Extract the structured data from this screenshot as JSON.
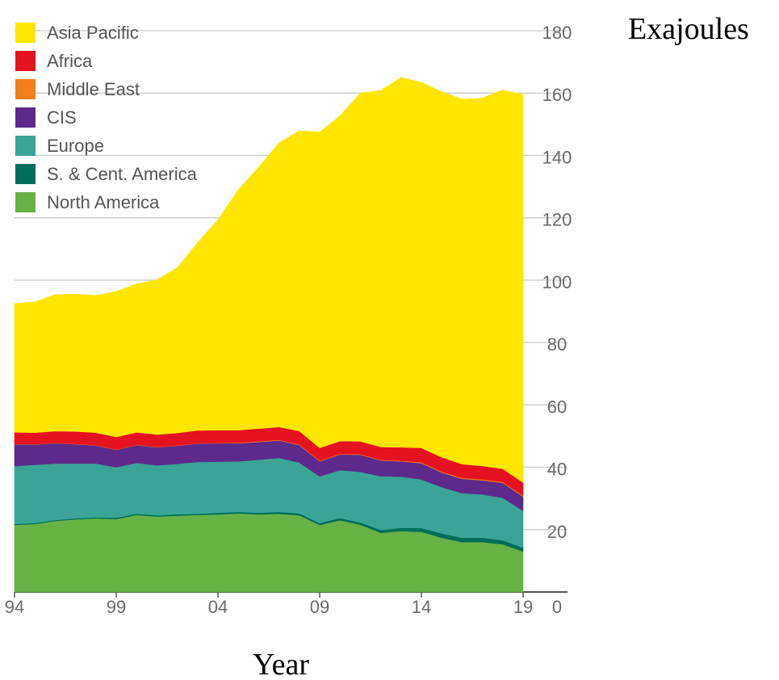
{
  "chart_data": {
    "type": "area",
    "stacked": true,
    "title": "",
    "xlabel": "Year",
    "ylabel": "Exajoules",
    "ylim": [
      0,
      180
    ],
    "yticks": [
      0,
      20,
      40,
      60,
      80,
      100,
      120,
      140,
      160,
      180
    ],
    "xlim": [
      1994,
      2019
    ],
    "xticks": [
      1994,
      1999,
      2004,
      2009,
      2014,
      2019
    ],
    "xtick_labels": [
      "94",
      "99",
      "04",
      "09",
      "14",
      "19"
    ],
    "y_axis_position": "right",
    "grid": true,
    "legend_position": "top-left",
    "x": [
      1994,
      1995,
      1996,
      1997,
      1998,
      1999,
      2000,
      2001,
      2002,
      2003,
      2004,
      2005,
      2006,
      2007,
      2008,
      2009,
      2010,
      2011,
      2012,
      2013,
      2014,
      2015,
      2016,
      2017,
      2018,
      2019
    ],
    "series": [
      {
        "name": "North America",
        "color": "#66b245",
        "values": [
          21.5,
          21.8,
          22.8,
          23.3,
          23.6,
          23.4,
          24.7,
          24.2,
          24.5,
          24.7,
          24.9,
          25.2,
          24.9,
          25.1,
          24.6,
          21.5,
          23.0,
          21.6,
          19.0,
          19.5,
          19.3,
          17.4,
          16.0,
          16.0,
          15.3,
          13.0
        ]
      },
      {
        "name": "S. & Cent. America",
        "color": "#006e5a",
        "values": [
          0.3,
          0.3,
          0.3,
          0.3,
          0.3,
          0.4,
          0.4,
          0.4,
          0.4,
          0.4,
          0.5,
          0.5,
          0.5,
          0.6,
          0.6,
          0.6,
          0.7,
          0.7,
          0.9,
          1.1,
          1.2,
          1.4,
          1.4,
          1.4,
          1.3,
          1.2
        ]
      },
      {
        "name": "Europe",
        "color": "#3aa597",
        "values": [
          18.6,
          18.7,
          18.1,
          17.6,
          17.3,
          16.2,
          16.3,
          16.0,
          16.2,
          16.6,
          16.4,
          16.2,
          17.0,
          17.3,
          16.3,
          15.0,
          15.4,
          16.2,
          17.2,
          16.4,
          15.6,
          14.8,
          14.3,
          13.9,
          13.6,
          11.8
        ]
      },
      {
        "name": "CIS",
        "color": "#5d2a8c",
        "values": [
          7.0,
          6.5,
          6.5,
          6.2,
          5.8,
          5.6,
          5.7,
          5.8,
          5.8,
          5.9,
          5.9,
          5.8,
          5.7,
          5.6,
          5.6,
          4.8,
          5.0,
          5.5,
          5.1,
          4.9,
          5.2,
          4.7,
          4.6,
          4.5,
          4.8,
          4.6
        ]
      },
      {
        "name": "Middle East",
        "color": "#f07f1c",
        "values": [
          0.1,
          0.1,
          0.1,
          0.1,
          0.1,
          0.1,
          0.1,
          0.1,
          0.1,
          0.1,
          0.1,
          0.2,
          0.2,
          0.2,
          0.2,
          0.2,
          0.2,
          0.2,
          0.2,
          0.2,
          0.3,
          0.3,
          0.3,
          0.3,
          0.3,
          0.3
        ]
      },
      {
        "name": "Africa",
        "color": "#e5121f",
        "values": [
          3.7,
          3.7,
          3.8,
          4.0,
          4.0,
          4.0,
          4.0,
          4.0,
          4.0,
          4.1,
          4.1,
          4.0,
          4.1,
          4.1,
          4.3,
          4.1,
          4.1,
          4.1,
          4.1,
          4.3,
          4.6,
          4.6,
          4.4,
          4.3,
          4.2,
          4.2
        ]
      },
      {
        "name": "Asia Pacific",
        "color": "#ffe600",
        "values": [
          41.3,
          41.9,
          43.8,
          44.0,
          44.0,
          46.7,
          47.6,
          49.6,
          53.0,
          60.2,
          67.5,
          77.1,
          83.8,
          91.1,
          96.3,
          101.3,
          104.3,
          111.7,
          114.3,
          118.6,
          117.2,
          117.3,
          117.0,
          118.0,
          121.5,
          124.4
        ]
      }
    ],
    "legend_order": [
      "Asia Pacific",
      "Africa",
      "Middle East",
      "CIS",
      "Europe",
      "S. & Cent. America",
      "North America"
    ]
  }
}
